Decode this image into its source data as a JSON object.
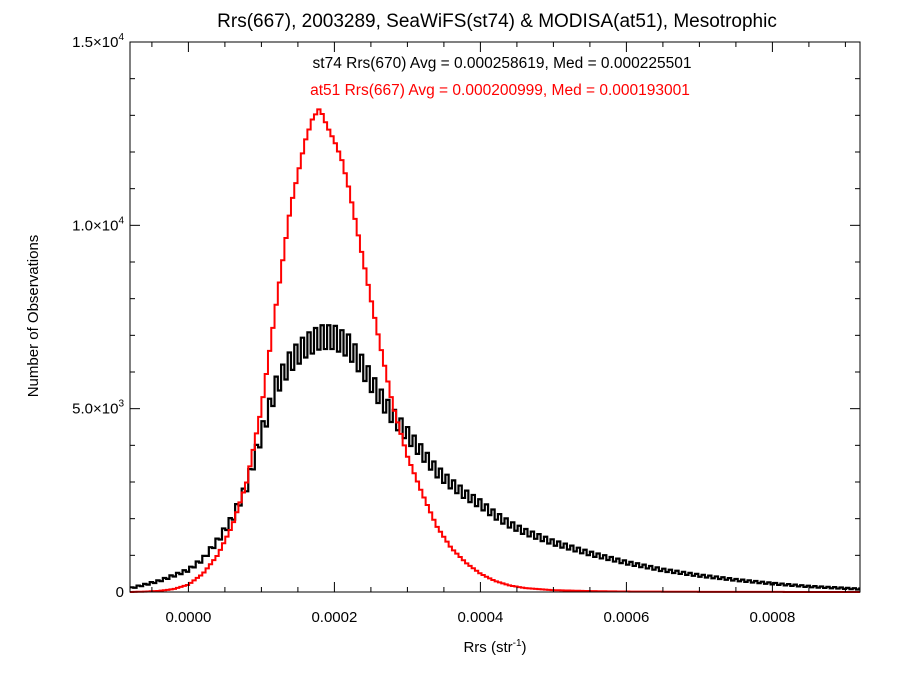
{
  "chart_data": {
    "type": "line",
    "title": "Rrs(667), 2003289, SeaWiFS(st74) & MODISA(at51), Mesotrophic",
    "xlabel": "Rrs (str",
    "xlabel_sup": "-1",
    "xlabel_close": ")",
    "ylabel": "Number of Observations",
    "xlim": [
      -8e-05,
      0.00092
    ],
    "ylim": [
      0,
      15000
    ],
    "x_ticks": [
      0.0,
      0.0002,
      0.0004,
      0.0006,
      0.0008
    ],
    "x_tick_labels": [
      "0.0000",
      "0.0002",
      "0.0004",
      "0.0006",
      "0.0008"
    ],
    "y_ticks": [
      0,
      5000,
      10000,
      15000
    ],
    "y_tick_labels": [
      {
        "value": 0,
        "mantissa": "0",
        "exp": ""
      },
      {
        "value": 5000,
        "mantissa": "5.0×10",
        "exp": "3"
      },
      {
        "value": 10000,
        "mantissa": "1.0×10",
        "exp": "4"
      },
      {
        "value": 15000,
        "mantissa": "1.5×10",
        "exp": "4"
      }
    ],
    "grid": false,
    "annotations": [
      {
        "text": "st74 Rrs(670) Avg = 0.000258619, Med = 0.000225501",
        "color": "#000000"
      },
      {
        "text": "at51 Rrs(667) Avg = 0.000200999, Med = 0.000193001",
        "color": "#ff0000"
      }
    ],
    "series": [
      {
        "color": "#000000",
        "style": "noisy-step",
        "x": [
          -8e-05,
          -6e-05,
          -4e-05,
          -2e-05,
          0.0,
          2e-05,
          4e-05,
          6e-05,
          8e-05,
          0.0001,
          0.00012,
          0.00014,
          0.00016,
          0.00018,
          0.0002,
          0.00022,
          0.00024,
          0.00026,
          0.00028,
          0.0003,
          0.00032,
          0.00034,
          0.00036,
          0.00038,
          0.0004,
          0.00042,
          0.00044,
          0.00046,
          0.00048,
          0.0005,
          0.00055,
          0.0006,
          0.00065,
          0.0007,
          0.00075,
          0.0008,
          0.00085,
          0.00092
        ],
        "values": [
          100,
          200,
          300,
          450,
          600,
          900,
          1400,
          2000,
          2900,
          4300,
          5600,
          6300,
          6700,
          6950,
          6950,
          6700,
          6100,
          5400,
          4800,
          4300,
          3800,
          3300,
          2950,
          2650,
          2400,
          2100,
          1850,
          1650,
          1500,
          1350,
          1050,
          800,
          600,
          450,
          330,
          230,
          150,
          80
        ]
      },
      {
        "color": "#ff0000",
        "style": "step",
        "x": [
          -8e-05,
          -6e-05,
          -4e-05,
          -2e-05,
          0.0,
          2e-05,
          4e-05,
          6e-05,
          8e-05,
          0.0001,
          0.00012,
          0.00014,
          0.00016,
          0.00017,
          0.00018,
          0.00019,
          0.0002,
          0.00021,
          0.00022,
          0.00024,
          0.00026,
          0.00028,
          0.0003,
          0.00032,
          0.00034,
          0.00036,
          0.00038,
          0.0004,
          0.00042,
          0.00044,
          0.00046,
          0.0005,
          0.00055,
          0.0006,
          0.0007,
          0.0008,
          0.00092
        ],
        "values": [
          0,
          10,
          30,
          80,
          200,
          500,
          1000,
          1800,
          3000,
          5000,
          7800,
          10500,
          12300,
          12900,
          13200,
          12700,
          12300,
          11800,
          11000,
          9000,
          7000,
          5100,
          3700,
          2700,
          1800,
          1200,
          800,
          500,
          300,
          180,
          110,
          50,
          25,
          12,
          5,
          2,
          0
        ]
      }
    ]
  }
}
